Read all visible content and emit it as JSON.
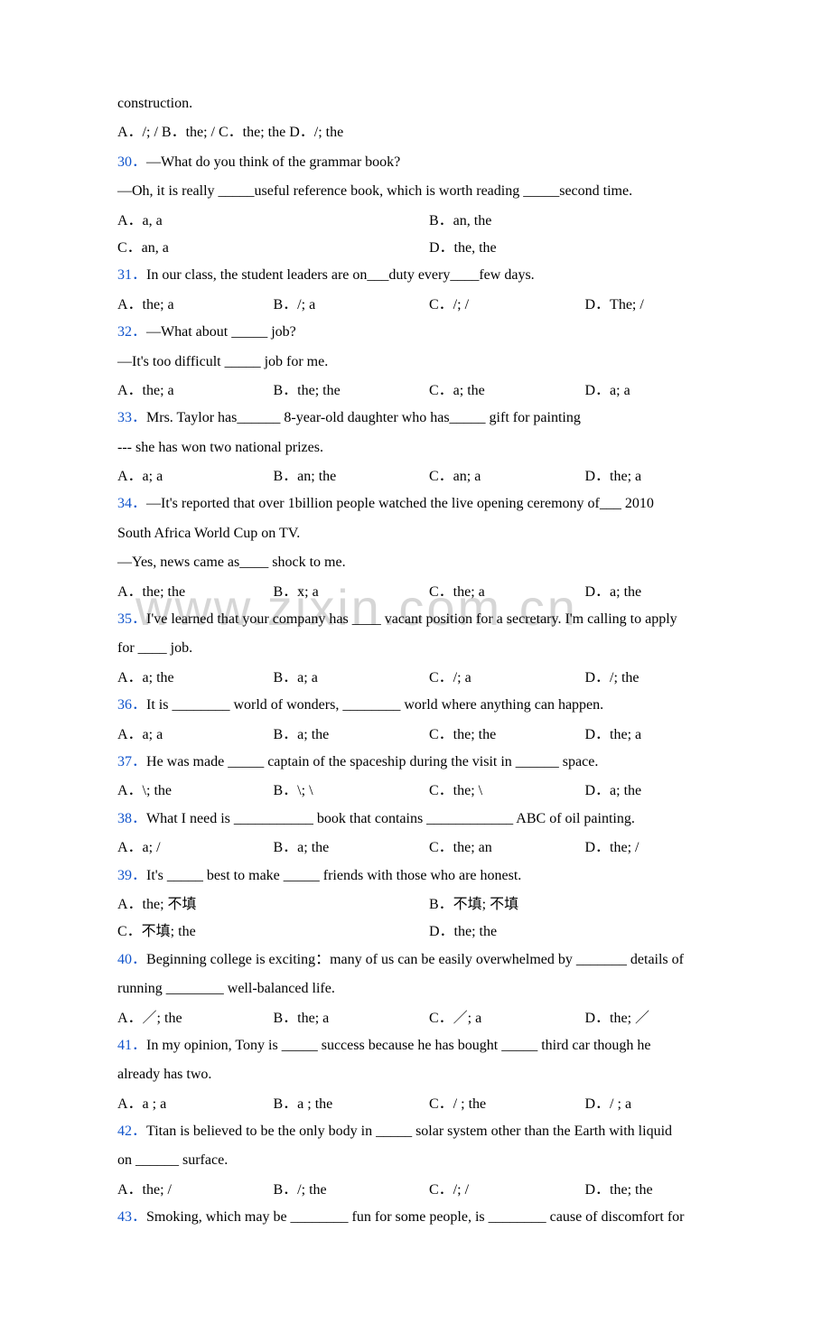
{
  "watermark": "www.zixin.com.cn",
  "construction_label": "construction.",
  "q29_options": "A．/; /   B．the; /   C．the; the   D．/; the",
  "q30": {
    "num": "30．",
    "line1": "—What do you think of the grammar book?",
    "line2": "—Oh, it is really _____useful reference book, which is worth reading _____second time.",
    "optA": "A．a, a",
    "optB": "B．an, the",
    "optC": "C．an, a",
    "optD": "D．the, the"
  },
  "q31": {
    "num": "31．",
    "text": "In our class, the student leaders are on___duty every____few days.",
    "optA": "A．the; a",
    "optB": "B．/; a",
    "optC": "C．/; /",
    "optD": "D．The; /"
  },
  "q32": {
    "num": "32．",
    "line1": "—What about _____ job?",
    "line2": "—It's too difficult _____ job for me.",
    "optA": "A．the; a",
    "optB": "B．the; the",
    "optC": "C．a; the",
    "optD": "D．a; a"
  },
  "q33": {
    "num": "33．",
    "line1": "Mrs. Taylor has______ 8-year-old daughter who has_____ gift for painting",
    "line2": "--- she has won two national prizes.",
    "optA": "A．a; a",
    "optB": "B．an; the",
    "optC": "C．an; a",
    "optD": "D．the; a"
  },
  "q34": {
    "num": "34．",
    "line1": "—It's reported that over 1billion people watched the live opening ceremony of___ 2010",
    "line2": "South Africa World Cup on TV.",
    "line3": "—Yes, news came as____ shock to me.",
    "optA": "A．the; the",
    "optB": "B．x; a",
    "optC": "C．the; a",
    "optD": "D．a; the"
  },
  "q35": {
    "num": "35．",
    "line1": "I've learned that your company has ____ vacant position for a secretary. I'm calling to apply",
    "line2": "for ____ job.",
    "optA": "A．a; the",
    "optB": "B．a; a",
    "optC": "C．/; a",
    "optD": "D．/; the"
  },
  "q36": {
    "num": "36．",
    "text": "It is ________ world of wonders, ________ world where anything can happen.",
    "optA": "A．a; a",
    "optB": "B．a; the",
    "optC": "C．the; the",
    "optD": "D．the; a"
  },
  "q37": {
    "num": "37．",
    "text": "He was made _____ captain of the spaceship during the visit in ______ space.",
    "optA": "A．\\; the",
    "optB": "B．\\; \\",
    "optC": "C．the; \\",
    "optD": "D．a; the"
  },
  "q38": {
    "num": "38．",
    "text": "What I need is ___________ book that contains ____________ ABC of oil painting.",
    "optA": "A．a; /",
    "optB": "B．a; the",
    "optC": "C．the; an",
    "optD": "D．the; /"
  },
  "q39": {
    "num": "39．",
    "text": "It's _____ best to make _____ friends with those who are honest.",
    "optA": "A．the; 不填",
    "optB": "B．不填; 不填",
    "optC": "C．不填; the",
    "optD": "D．the; the"
  },
  "q40": {
    "num": "40．",
    "line1": "Beginning college is exciting：many of us can be easily overwhelmed by _______ details of",
    "line2": "running ________ well-balanced life.",
    "optA": "A．／; the",
    "optB": "B．the; a",
    "optC": "C．／; a",
    "optD": "D．the; ／"
  },
  "q41": {
    "num": "41．",
    "line1": "In my opinion, Tony is _____ success because he has bought _____ third car though he",
    "line2": "already has two.",
    "optA": "A．a ; a",
    "optB": "B．a ; the",
    "optC": "C．/ ; the",
    "optD": "D．/ ; a"
  },
  "q42": {
    "num": "42．",
    "line1": "Titan is believed to be the only body in _____ solar system other than the Earth with liquid",
    "line2": "on ______ surface.",
    "optA": "A．the; /",
    "optB": "B．/; the",
    "optC": "C．/; /",
    "optD": "D．the; the"
  },
  "q43": {
    "num": "43．",
    "text": "Smoking, which may be ________ fun for some people, is ________ cause of discomfort for"
  }
}
